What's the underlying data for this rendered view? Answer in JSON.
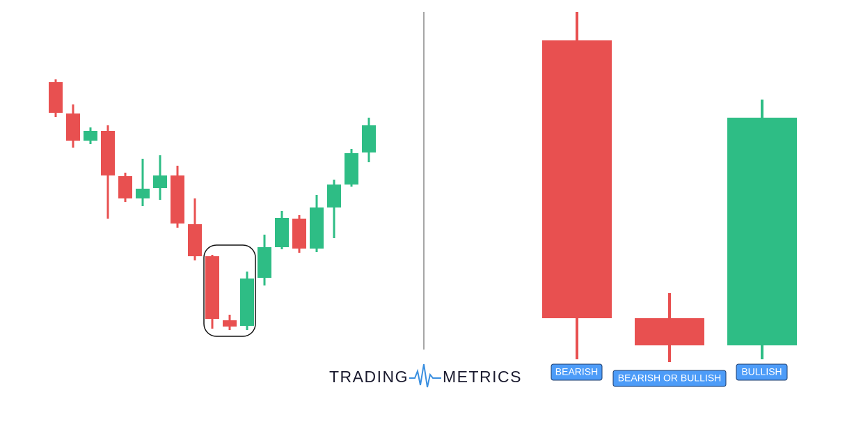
{
  "logo": {
    "left": "TRADING",
    "right": "METRICS"
  },
  "labels": [
    "BEARISH",
    "BEARISH OR BULLISH",
    "BULLISH"
  ]
}
